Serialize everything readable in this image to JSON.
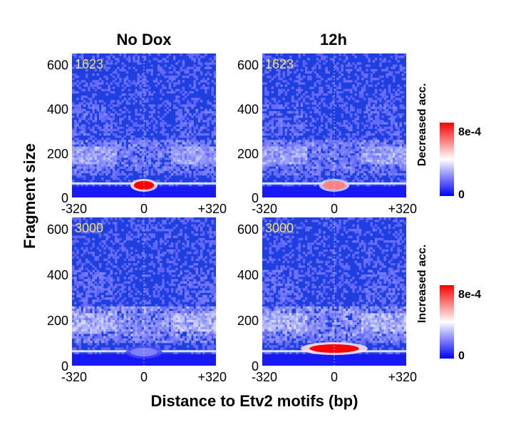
{
  "chart_data": {
    "type": "heatmap",
    "column_titles": [
      "No Dox",
      "12h"
    ],
    "row_labels": [
      "Decreased acc.",
      "Increased acc."
    ],
    "xlabel": "Distance to Etv2 motifs (bp)",
    "ylabel": "Fragment size",
    "x_ticks": [
      "-320",
      "0",
      "+320"
    ],
    "y_ticks": [
      "0",
      "200",
      "400",
      "600"
    ],
    "xlim": [
      -320,
      320
    ],
    "ylim": [
      0,
      650
    ],
    "colorbar": {
      "min_label": "0",
      "max_label": "8e-4",
      "range": [
        0,
        0.0008
      ],
      "colors": [
        "#0000ff",
        "#ffffff",
        "#ff0000"
      ]
    },
    "panels": [
      {
        "column": "No Dox",
        "row": "Decreased acc.",
        "count": "1623",
        "peak_fragment_size": 55,
        "peak_value": 0.0008,
        "peak_halfwidth_bp": 45
      },
      {
        "column": "12h",
        "row": "Decreased acc.",
        "count": "1623",
        "peak_fragment_size": 55,
        "peak_value": 0.0006,
        "peak_halfwidth_bp": 50
      },
      {
        "column": "No Dox",
        "row": "Increased acc.",
        "count": "3000",
        "peak_fragment_size": 60,
        "peak_value": 0.0002,
        "peak_halfwidth_bp": 60
      },
      {
        "column": "12h",
        "row": "Increased acc.",
        "count": "3000",
        "peak_fragment_size": 75,
        "peak_value": 0.0008,
        "peak_halfwidth_bp": 110
      }
    ]
  },
  "colors": {
    "count_label": "#f2e35a",
    "background_blue": "#1f3ee0"
  }
}
